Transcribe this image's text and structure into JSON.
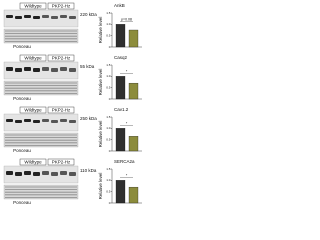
{
  "blots": [
    {
      "columns": [
        "Wildtype",
        "PKP2-Hz"
      ],
      "marker": "220 kDa",
      "loading": "Ponceau"
    },
    {
      "columns": [
        "Wildtype",
        "PKP2-Hz"
      ],
      "marker": "55 kDa",
      "loading": "Ponceau"
    },
    {
      "columns": [
        "Wildtype",
        "PKP2-Hz"
      ],
      "marker": "250 kDa",
      "loading": "Ponceau"
    },
    {
      "columns": [
        "Wildtype",
        "PKP2-Hz"
      ],
      "marker": "110 kDa",
      "loading": "Ponceau"
    }
  ],
  "chart_data": [
    {
      "type": "bar",
      "title": "AnkB",
      "y_label": "Relative level",
      "values": [
        1.0,
        0.75
      ],
      "colors": [
        "#2f2f2f",
        "#8c8c3c"
      ],
      "annotation": "p=0.08",
      "ylim": [
        0,
        1.5
      ],
      "yticks": [
        0,
        0.5,
        {
          "value": 1,
          "label": "1.0"
        },
        1.5
      ]
    },
    {
      "type": "bar",
      "title": "Casq2",
      "y_label": "Relative level",
      "values": [
        1.0,
        0.7
      ],
      "colors": [
        "#2f2f2f",
        "#8c8c3c"
      ],
      "annotation": "*",
      "ylim": [
        0,
        1.5
      ],
      "yticks": [
        0,
        0.5,
        {
          "value": 1,
          "label": "1.0"
        },
        1.5
      ]
    },
    {
      "type": "bar",
      "title": "Cav1.2",
      "y_label": "Relative level",
      "values": [
        1.0,
        0.65
      ],
      "colors": [
        "#2f2f2f",
        "#8c8c3c"
      ],
      "annotation": "*",
      "ylim": [
        0,
        1.5
      ],
      "yticks": [
        0,
        0.5,
        {
          "value": 1,
          "label": "1.0"
        },
        1.5
      ]
    },
    {
      "type": "bar",
      "title": "SERCA2a",
      "y_label": "Relative level",
      "values": [
        1.0,
        0.7
      ],
      "colors": [
        "#2f2f2f",
        "#8c8c3c"
      ],
      "annotation": "*",
      "ylim": [
        0,
        1.5
      ],
      "yticks": [
        0,
        0.5,
        {
          "value": 1,
          "label": "1.0"
        },
        1.5
      ]
    }
  ]
}
